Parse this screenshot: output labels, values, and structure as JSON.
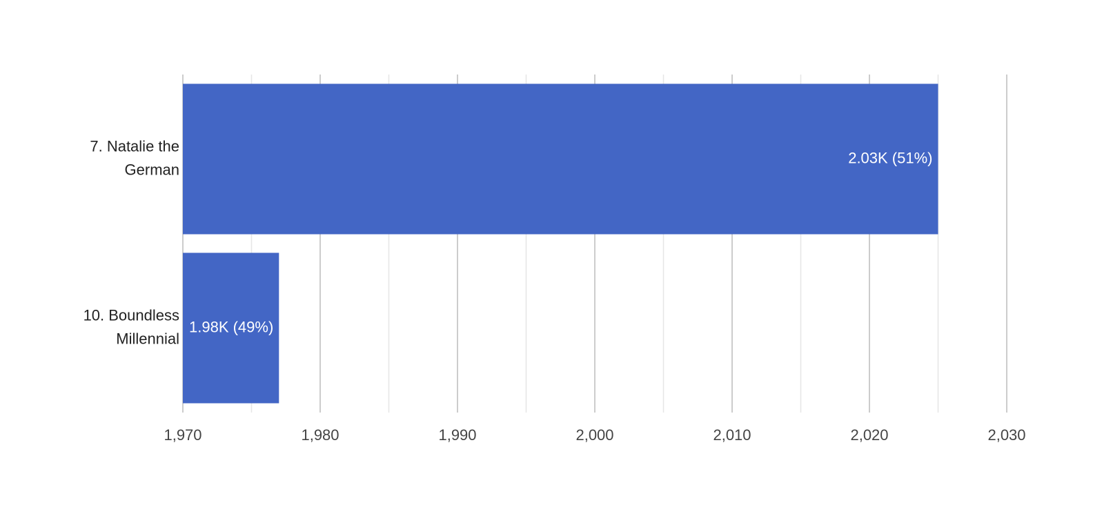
{
  "chart_data": {
    "type": "hbar",
    "categories": [
      "7. Natalie the German",
      "10. Boundless Millennial"
    ],
    "values": [
      2025,
      1977
    ],
    "value_labels": [
      "2.03K (51%)",
      "1.98K (49%)"
    ],
    "color": "#4366c5",
    "xlim": [
      1970,
      2030
    ],
    "xticks": [
      {
        "value": 1970,
        "label": "1,970"
      },
      {
        "value": 1980,
        "label": "1,980"
      },
      {
        "value": 1990,
        "label": "1,990"
      },
      {
        "value": 2000,
        "label": "2,000"
      },
      {
        "value": 2010,
        "label": "2,010"
      },
      {
        "value": 2020,
        "label": "2,020"
      },
      {
        "value": 2030,
        "label": "2,030"
      }
    ],
    "minor_xticks": [
      1975,
      1985,
      1995,
      2005,
      2015,
      2025
    ],
    "grid": true
  }
}
